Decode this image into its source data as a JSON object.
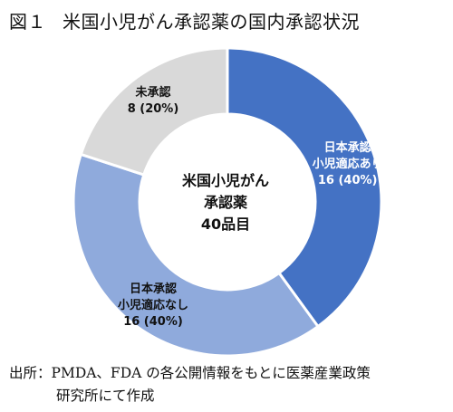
{
  "figure": {
    "number": "図１",
    "title": "米国小児がん承認薬の国内承認状況"
  },
  "chart_data": {
    "type": "pie",
    "title": "米国小児がん承認薬の国内承認状況",
    "center_label": [
      "米国小児がん",
      "承認薬",
      "40品目"
    ],
    "total": 40,
    "slices": [
      {
        "label": [
          "日本承認",
          "小児適応あり"
        ],
        "value": 16,
        "value_text": "16 (40%)",
        "color": "#4472c4",
        "text_color": "#ffffff"
      },
      {
        "label": [
          "日本承認",
          "小児適応なし"
        ],
        "value": 16,
        "value_text": "16 (40%)",
        "color": "#8faadc",
        "text_color": "#111111"
      },
      {
        "label": [
          "未承認"
        ],
        "value": 8,
        "value_text": "8 (20%)",
        "color": "#d9d9d9",
        "text_color": "#111111"
      }
    ],
    "legend": "none",
    "grid": false
  },
  "source": {
    "label": "出所：",
    "text_line1": "PMDA、FDA の各公開情報をもとに医薬産業政策",
    "text_line2": "研究所にて作成"
  }
}
